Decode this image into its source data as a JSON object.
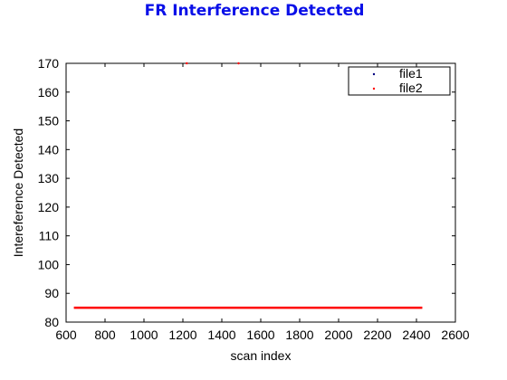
{
  "chart_data": {
    "type": "scatter",
    "title": "FR Interference Detected",
    "xlabel": "scan index",
    "ylabel": "Intereference Detected",
    "xlim": [
      600,
      2600
    ],
    "ylim": [
      80,
      170
    ],
    "xticks": [
      600,
      800,
      1000,
      1200,
      1400,
      1600,
      1800,
      2000,
      2200,
      2400,
      2600
    ],
    "yticks": [
      80,
      90,
      100,
      110,
      120,
      130,
      140,
      150,
      160,
      170
    ],
    "grid": false,
    "legend_position": "top-right",
    "series": [
      {
        "name": "file1",
        "color": "#000080",
        "marker": "point",
        "points": []
      },
      {
        "name": "file2",
        "color": "#ff0000",
        "marker": "point",
        "baseline_y": 85,
        "baseline_x_range": [
          640,
          2430
        ],
        "outliers": [
          [
            1220,
            170
          ],
          [
            1486,
            170
          ]
        ]
      }
    ]
  }
}
